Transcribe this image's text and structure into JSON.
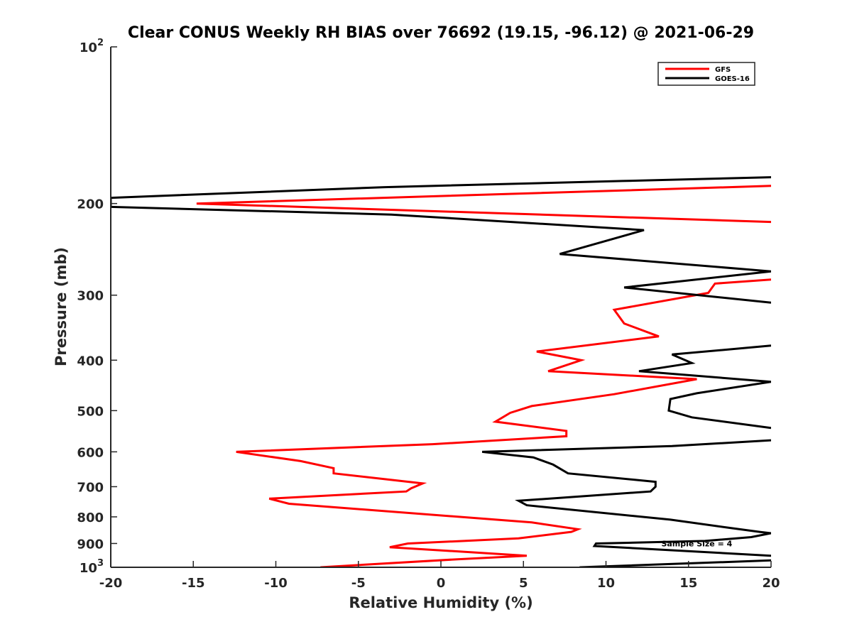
{
  "chart_data": {
    "type": "line",
    "title": "Clear CONUS Weekly RH BIAS over 76692 (19.15, -96.12) @ 2021-06-29",
    "xlabel": "Relative Humidity (%)",
    "ylabel": "Pressure (mb)",
    "xlim": [
      -20,
      20
    ],
    "ylim": [
      100,
      1000
    ],
    "yscale": "log",
    "y_reversed": true,
    "grid": false,
    "legend_position": "top-right",
    "x_ticks": [
      {
        "value": -20,
        "label": "-20"
      },
      {
        "value": -15,
        "label": "-15"
      },
      {
        "value": -10,
        "label": "-10"
      },
      {
        "value": -5,
        "label": "-5"
      },
      {
        "value": 0,
        "label": "0"
      },
      {
        "value": 5,
        "label": "5"
      },
      {
        "value": 10,
        "label": "10"
      },
      {
        "value": 15,
        "label": "15"
      },
      {
        "value": 20,
        "label": "20"
      }
    ],
    "y_ticks": [
      {
        "value": 100,
        "base": "10",
        "exp": "2"
      },
      {
        "value": 200,
        "base": "200",
        "exp": ""
      },
      {
        "value": 300,
        "base": "300",
        "exp": ""
      },
      {
        "value": 400,
        "base": "400",
        "exp": ""
      },
      {
        "value": 500,
        "base": "500",
        "exp": ""
      },
      {
        "value": 600,
        "base": "600",
        "exp": ""
      },
      {
        "value": 700,
        "base": "700",
        "exp": ""
      },
      {
        "value": 800,
        "base": "800",
        "exp": ""
      },
      {
        "value": 900,
        "base": "900",
        "exp": ""
      },
      {
        "value": 1000,
        "base": "10",
        "exp": "3"
      }
    ],
    "series": [
      {
        "name": "GFS",
        "color": "#ff0000",
        "points": [
          [
            20,
            185
          ],
          [
            -14.8,
            200
          ],
          [
            20,
            217
          ],
          [
            null,
            230
          ],
          [
            null,
            265
          ],
          [
            20,
            280
          ],
          [
            16.6,
            285
          ],
          [
            16.2,
            297
          ],
          [
            10.5,
            320
          ],
          [
            11.1,
            340
          ],
          [
            13.2,
            360
          ],
          [
            5.8,
            385
          ],
          [
            8.5,
            400
          ],
          [
            6.5,
            420
          ],
          [
            15.5,
            435
          ],
          [
            10.5,
            465
          ],
          [
            5.5,
            490
          ],
          [
            4.2,
            505
          ],
          [
            3.3,
            525
          ],
          [
            7.6,
            547
          ],
          [
            7.6,
            560
          ],
          [
            -0.5,
            580
          ],
          [
            -12.4,
            600
          ],
          [
            -8.5,
            625
          ],
          [
            -6.5,
            645
          ],
          [
            -6.5,
            660
          ],
          [
            -1.1,
            690
          ],
          [
            -1.8,
            705
          ],
          [
            -2.1,
            715
          ],
          [
            -10.4,
            738
          ],
          [
            -9.2,
            755
          ],
          [
            5.5,
            820
          ],
          [
            8.3,
            845
          ],
          [
            7.9,
            855
          ],
          [
            4.7,
            880
          ],
          [
            -2.0,
            900
          ],
          [
            -3.1,
            915
          ],
          [
            5.2,
            950
          ],
          [
            1.0,
            965
          ],
          [
            -7.3,
            1000
          ]
        ]
      },
      {
        "name": "GOES-16",
        "color": "#000000",
        "points": [
          [
            20,
            178
          ],
          [
            11.0,
            181
          ],
          [
            -3.4,
            186
          ],
          [
            -20,
            195
          ],
          [
            -20,
            203
          ],
          [
            -3.0,
            210
          ],
          [
            12.3,
            225
          ],
          [
            7.2,
            250
          ],
          [
            20,
            270
          ],
          [
            11.1,
            290
          ],
          [
            20,
            310
          ],
          [
            null,
            330
          ],
          [
            20,
            375
          ],
          [
            14.0,
            390
          ],
          [
            15.2,
            405
          ],
          [
            12.0,
            420
          ],
          [
            20,
            440
          ],
          [
            15.5,
            463
          ],
          [
            13.9,
            475
          ],
          [
            13.8,
            500
          ],
          [
            15.2,
            515
          ],
          [
            20,
            540
          ],
          [
            null,
            560
          ],
          [
            20,
            570
          ],
          [
            14.0,
            585
          ],
          [
            2.5,
            600
          ],
          [
            5.6,
            615
          ],
          [
            6.8,
            635
          ],
          [
            7.7,
            660
          ],
          [
            13.0,
            685
          ],
          [
            13.0,
            700
          ],
          [
            12.7,
            715
          ],
          [
            4.7,
            745
          ],
          [
            5.2,
            760
          ],
          [
            13.9,
            810
          ],
          [
            17.5,
            840
          ],
          [
            19.3,
            855
          ],
          [
            20,
            860
          ],
          [
            18.8,
            875
          ],
          [
            16.0,
            890
          ],
          [
            9.4,
            900
          ],
          [
            9.3,
            910
          ],
          [
            20,
            950
          ],
          [
            null,
            960
          ],
          [
            20,
            970
          ],
          [
            8.4,
            1000
          ]
        ]
      }
    ],
    "annotations": [
      {
        "text": "Sample Size = 4",
        "x": 15.5,
        "y": 900
      }
    ]
  }
}
